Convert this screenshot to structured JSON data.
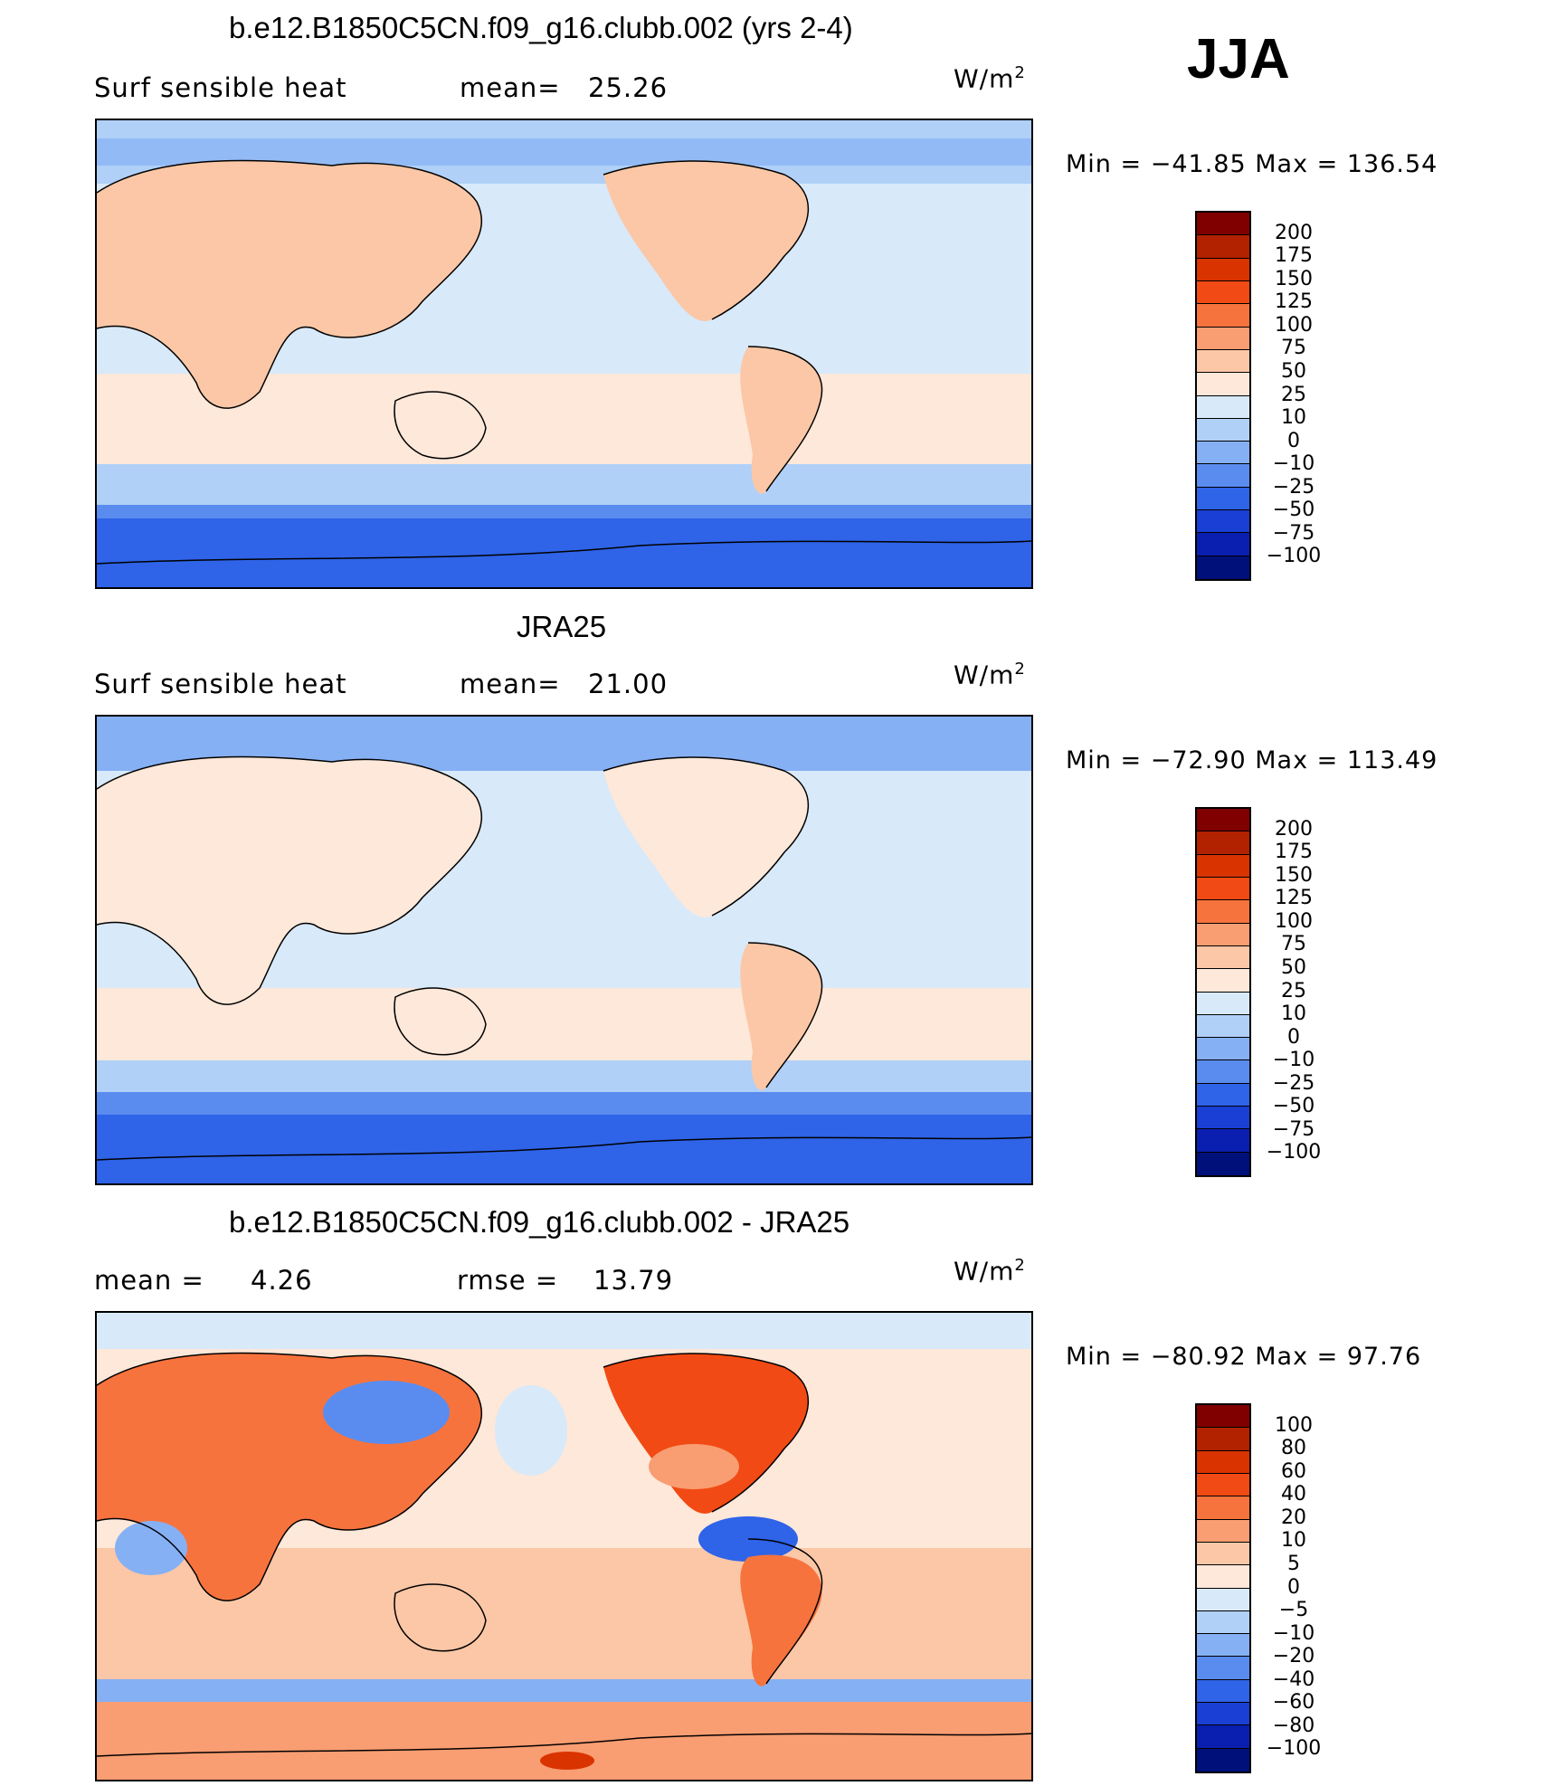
{
  "season": "JJA",
  "units": {
    "base": "W/m",
    "exp": "2"
  },
  "chart_data": [
    {
      "type": "heatmap",
      "title": "b.e12.B1850C5CN.f09_g16.clubb.002 (yrs 2-4)",
      "left_label": "Surf  sensible  heat",
      "stat_label": "mean=",
      "stat_value": "25.26",
      "min_label": "Min  =",
      "min_value": "−41.85",
      "max_label": "Max  =",
      "max_value": "136.54",
      "levels": [
        "200",
        "175",
        "150",
        "125",
        "100",
        "75",
        "50",
        "25",
        "10",
        "0",
        "−10",
        "−25",
        "−50",
        "−75",
        "−100"
      ],
      "colors": [
        "#800000",
        "#b22200",
        "#d93300",
        "#f24a14",
        "#f7733d",
        "#f99d72",
        "#fbc7a6",
        "#fde8d9",
        "#d8e9fa",
        "#b0d0f8",
        "#86b0f4",
        "#5a8cf0",
        "#2f63e8",
        "#1a3fd4",
        "#0a1fb0",
        "#00107a"
      ]
    },
    {
      "type": "heatmap",
      "title": "JRA25",
      "left_label": "Surf  sensible  heat",
      "stat_label": "mean=",
      "stat_value": "21.00",
      "min_label": "Min  =",
      "min_value": "−72.90",
      "max_label": "Max  =",
      "max_value": "113.49",
      "levels": [
        "200",
        "175",
        "150",
        "125",
        "100",
        "75",
        "50",
        "25",
        "10",
        "0",
        "−10",
        "−25",
        "−50",
        "−75",
        "−100"
      ],
      "colors": [
        "#800000",
        "#b22200",
        "#d93300",
        "#f24a14",
        "#f7733d",
        "#f99d72",
        "#fbc7a6",
        "#fde8d9",
        "#d8e9fa",
        "#b0d0f8",
        "#86b0f4",
        "#5a8cf0",
        "#2f63e8",
        "#1a3fd4",
        "#0a1fb0",
        "#00107a"
      ]
    },
    {
      "type": "heatmap",
      "title": "b.e12.B1850C5CN.f09_g16.clubb.002 - JRA25",
      "left_label": "mean  =",
      "left_value": "4.26",
      "stat_label": "rmse  =",
      "stat_value": "13.79",
      "min_label": "Min  =",
      "min_value": "−80.92",
      "max_label": "Max  =",
      "max_value": "97.76",
      "levels": [
        "100",
        "80",
        "60",
        "40",
        "20",
        "10",
        "5",
        "0",
        "−5",
        "−10",
        "−20",
        "−40",
        "−60",
        "−80",
        "−100"
      ],
      "colors": [
        "#800000",
        "#b22200",
        "#d93300",
        "#f24a14",
        "#f7733d",
        "#f99d72",
        "#fbc7a6",
        "#fde8d9",
        "#d8e9fa",
        "#b0d0f8",
        "#86b0f4",
        "#5a8cf0",
        "#2f63e8",
        "#1a3fd4",
        "#0a1fb0",
        "#00107a"
      ]
    }
  ]
}
